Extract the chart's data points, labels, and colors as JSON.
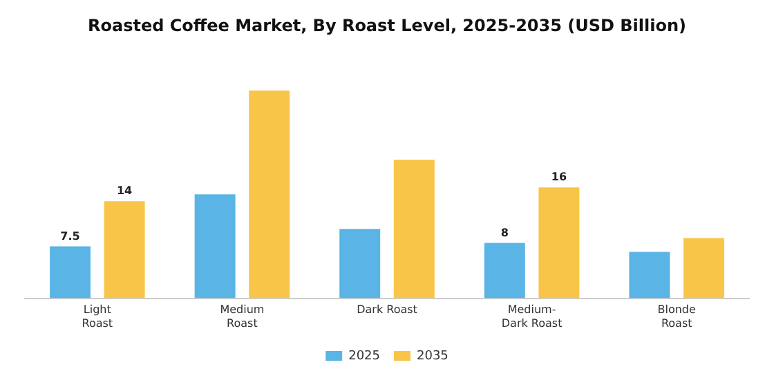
{
  "chart_data": {
    "type": "bar",
    "title": "Roasted Coffee Market, By Roast Level, 2025-2035 (USD Billion)",
    "categories": [
      "Light\nRoast",
      "Medium\nRoast",
      "Dark Roast",
      "Medium-\nDark Roast",
      "Blonde\nRoast"
    ],
    "series": [
      {
        "name": "2025",
        "color": "#5ab4e5",
        "values": [
          7.5,
          15,
          10,
          8,
          6.7
        ],
        "value_labels": [
          "7.5",
          null,
          null,
          "8",
          null
        ]
      },
      {
        "name": "2035",
        "color": "#f9c548",
        "values": [
          14,
          30,
          20,
          16,
          8.7
        ],
        "value_labels": [
          "14",
          null,
          null,
          "16",
          null
        ]
      }
    ],
    "grid": false,
    "legend": "bottom"
  }
}
